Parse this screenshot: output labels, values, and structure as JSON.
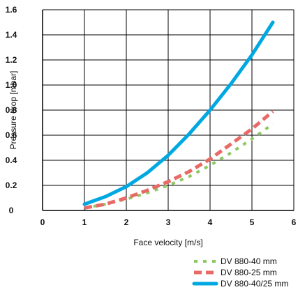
{
  "chart_data": {
    "type": "line",
    "title": "",
    "xlabel": "Face velocity [m/s]",
    "ylabel": "Pressure drop [mbar]",
    "xlim": [
      0,
      6
    ],
    "ylim": [
      0,
      1.6
    ],
    "x_ticks": [
      0,
      1,
      2,
      3,
      4,
      5,
      6
    ],
    "y_ticks": [
      0,
      0.2,
      0.4,
      0.6,
      0.8,
      1.0,
      1.2,
      1.4,
      1.6
    ],
    "x_tick_labels": [
      "0",
      "1",
      "2",
      "3",
      "4",
      "5",
      "6"
    ],
    "y_tick_labels": [
      "0",
      "0.2",
      "0.4",
      "0.6",
      "0.8",
      "1.0",
      "1.2",
      "1.4",
      "1.6"
    ],
    "grid": true,
    "legend_position": "bottom-right",
    "series": [
      {
        "name": "DV 880-40 mm",
        "color": "#8dc863",
        "style": "dotted",
        "points": [
          [
            1.0,
            0.02
          ],
          [
            1.5,
            0.05
          ],
          [
            2.0,
            0.09
          ],
          [
            2.5,
            0.14
          ],
          [
            3.0,
            0.2
          ],
          [
            3.5,
            0.27
          ],
          [
            4.0,
            0.36
          ],
          [
            4.5,
            0.46
          ],
          [
            5.0,
            0.57
          ],
          [
            5.5,
            0.69
          ]
        ]
      },
      {
        "name": "DV 880-25 mm",
        "color": "#e86a67",
        "style": "dashed",
        "points": [
          [
            1.0,
            0.02
          ],
          [
            1.5,
            0.05
          ],
          [
            2.0,
            0.1
          ],
          [
            2.5,
            0.16
          ],
          [
            3.0,
            0.23
          ],
          [
            3.5,
            0.31
          ],
          [
            4.0,
            0.41
          ],
          [
            4.5,
            0.53
          ],
          [
            5.0,
            0.65
          ],
          [
            5.5,
            0.79
          ]
        ]
      },
      {
        "name": "DV 880-40/25 mm",
        "color": "#00a8e2",
        "style": "solid",
        "points": [
          [
            1.0,
            0.05
          ],
          [
            1.5,
            0.11
          ],
          [
            2.0,
            0.19
          ],
          [
            2.5,
            0.3
          ],
          [
            3.0,
            0.44
          ],
          [
            3.5,
            0.61
          ],
          [
            4.0,
            0.8
          ],
          [
            4.5,
            1.01
          ],
          [
            5.0,
            1.24
          ],
          [
            5.5,
            1.5
          ]
        ]
      }
    ]
  }
}
